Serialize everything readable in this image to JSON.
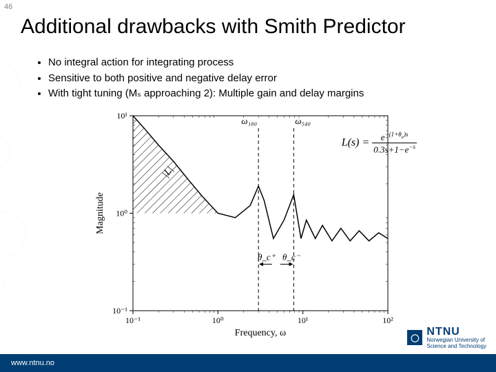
{
  "slideNumber": "46",
  "title": "Additional drawbacks with Smith Predictor",
  "bullets": [
    "No integral action for integrating process",
    "Sensitive to both positive and negative delay error",
    "With tight tuning (Mₛ approaching 2): Multiple gain and delay margins"
  ],
  "equation": {
    "lhs": "L(s) = ",
    "num": "e^{-(1+θₑ)s}",
    "den": "0.3s+1−e^{-s}"
  },
  "chart": {
    "type": "line",
    "xlabel": "Frequency, ω",
    "ylabel": "Magnitude",
    "xscale": "log",
    "yscale": "log",
    "xlim": [
      0.1,
      100
    ],
    "ylim": [
      0.1,
      10
    ],
    "xticks": [
      0.1,
      1,
      10,
      100
    ],
    "xtick_labels": [
      "10⁻¹",
      "10⁰",
      "10¹",
      "10²"
    ],
    "yticks": [
      0.1,
      1,
      10
    ],
    "ytick_labels": [
      "10⁻¹",
      "10⁰",
      "10¹"
    ],
    "line_color": "#000000",
    "line_width": 1.5,
    "background": "#ffffff",
    "border_color": "#000000",
    "L_label": "|L|",
    "annotations": {
      "omega180": "ω₁₈₀",
      "omega540": "ω₅₄₀",
      "theta_plus": "θ_c⁺",
      "theta_minus": "θ_c⁻"
    },
    "vlines": [
      3.0,
      7.8
    ],
    "vline_style": "dashed",
    "hatched_region": {
      "x": [
        0.1,
        1.0
      ],
      "y": [
        1.0,
        10.0
      ]
    },
    "curve": [
      [
        0.1,
        10.0
      ],
      [
        0.14,
        7.2
      ],
      [
        0.2,
        5.0
      ],
      [
        0.3,
        3.4
      ],
      [
        0.45,
        2.2
      ],
      [
        0.65,
        1.5
      ],
      [
        1.0,
        1.0
      ],
      [
        1.6,
        0.9
      ],
      [
        2.4,
        1.2
      ],
      [
        3.0,
        1.9
      ],
      [
        3.5,
        1.35
      ],
      [
        4.5,
        0.55
      ],
      [
        6.0,
        0.85
      ],
      [
        7.8,
        1.55
      ],
      [
        9.5,
        0.55
      ],
      [
        11.0,
        0.85
      ],
      [
        14.0,
        0.55
      ],
      [
        17.0,
        0.75
      ],
      [
        22.0,
        0.52
      ],
      [
        28.0,
        0.7
      ],
      [
        36.0,
        0.52
      ],
      [
        46.0,
        0.66
      ],
      [
        60.0,
        0.52
      ],
      [
        78.0,
        0.63
      ],
      [
        100.0,
        0.55
      ]
    ]
  },
  "footer": {
    "url": "www.ntnu.no",
    "logo_main": "NTNU",
    "logo_sub1": "Norwegian University of",
    "logo_sub2": "Science and Technology"
  },
  "colors": {
    "brand": "#003d73",
    "text": "#000000",
    "muted": "#808080"
  }
}
